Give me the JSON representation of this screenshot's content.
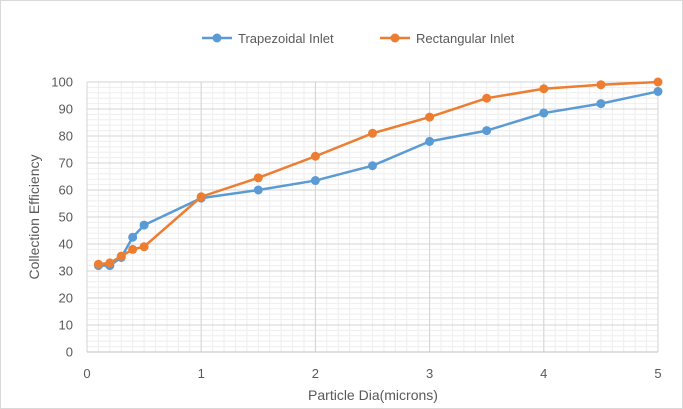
{
  "chart_data": {
    "type": "line",
    "xlabel": "Particle Dia(microns)",
    "ylabel": "Collection Efficiency",
    "xlim": [
      0,
      5
    ],
    "ylim": [
      0,
      100
    ],
    "x_ticks": [
      "0",
      "1",
      "2",
      "3",
      "4",
      "5"
    ],
    "y_ticks": [
      "0",
      "10",
      "20",
      "30",
      "40",
      "50",
      "60",
      "70",
      "80",
      "90",
      "100"
    ],
    "grid": true,
    "legend_position": "top",
    "series": [
      {
        "name": "Trapezoidal Inlet",
        "color": "#5b9bd5",
        "points": [
          [
            0.1,
            32
          ],
          [
            0.2,
            32
          ],
          [
            0.3,
            35
          ],
          [
            0.4,
            42.5
          ],
          [
            0.5,
            47
          ],
          [
            1.0,
            57
          ],
          [
            1.5,
            60
          ],
          [
            2.0,
            63.5
          ],
          [
            2.5,
            69
          ],
          [
            3.0,
            78
          ],
          [
            3.5,
            82
          ],
          [
            4.0,
            88.5
          ],
          [
            4.5,
            92
          ],
          [
            5.0,
            96.5
          ]
        ]
      },
      {
        "name": "Rectangular Inlet",
        "color": "#ed7d31",
        "points": [
          [
            0.1,
            32.5
          ],
          [
            0.2,
            33
          ],
          [
            0.3,
            35.5
          ],
          [
            0.4,
            38
          ],
          [
            0.5,
            39
          ],
          [
            1.0,
            57.5
          ],
          [
            1.5,
            64.5
          ],
          [
            2.0,
            72.5
          ],
          [
            2.5,
            81
          ],
          [
            3.0,
            87
          ],
          [
            3.5,
            94
          ],
          [
            4.0,
            97.5
          ],
          [
            4.5,
            99
          ],
          [
            5.0,
            100
          ]
        ]
      }
    ]
  }
}
